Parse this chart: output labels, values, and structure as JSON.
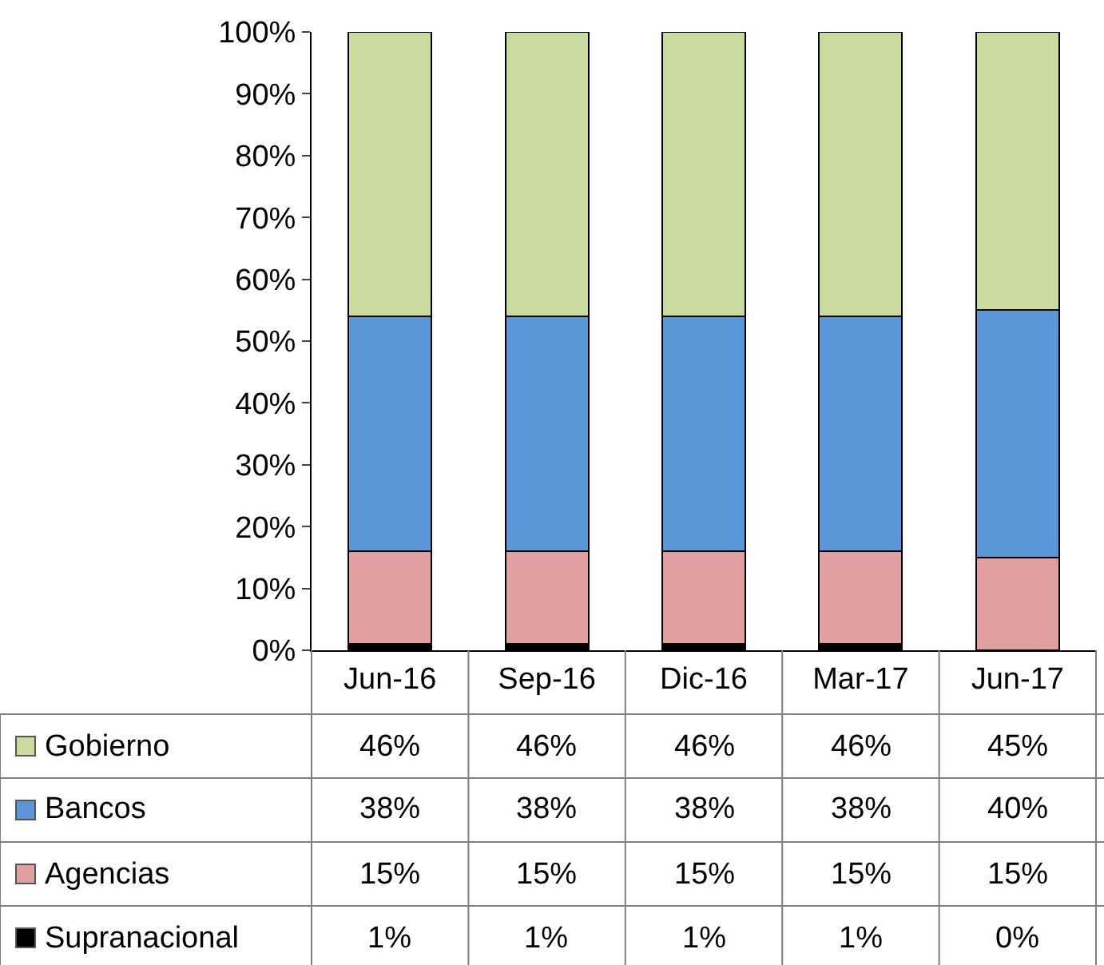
{
  "chart_data": {
    "type": "bar",
    "stacked": true,
    "categories": [
      "Jun-16",
      "Sep-16",
      "Dic-16",
      "Mar-17",
      "Jun-17"
    ],
    "series": [
      {
        "name": "Supranacional",
        "color": "#000000",
        "values": [
          1,
          1,
          1,
          1,
          0
        ],
        "value_labels": [
          "1%",
          "1%",
          "1%",
          "1%",
          "0%"
        ]
      },
      {
        "name": "Agencias",
        "color": "#e0a0a0",
        "values": [
          15,
          15,
          15,
          15,
          15
        ],
        "value_labels": [
          "15%",
          "15%",
          "15%",
          "15%",
          "15%"
        ]
      },
      {
        "name": "Bancos",
        "color": "#5b96d8",
        "values": [
          38,
          38,
          38,
          38,
          40
        ],
        "value_labels": [
          "38%",
          "38%",
          "38%",
          "38%",
          "40%"
        ]
      },
      {
        "name": "Gobierno",
        "color": "#c9da9f",
        "values": [
          46,
          46,
          46,
          46,
          45
        ],
        "value_labels": [
          "46%",
          "46%",
          "46%",
          "46%",
          "45%"
        ]
      }
    ],
    "ylim": [
      0,
      100
    ],
    "yticks": [
      {
        "value": 0,
        "label": "0%"
      },
      {
        "value": 10,
        "label": "10%"
      },
      {
        "value": 20,
        "label": "20%"
      },
      {
        "value": 30,
        "label": "30%"
      },
      {
        "value": 40,
        "label": "40%"
      },
      {
        "value": 50,
        "label": "50%"
      },
      {
        "value": 60,
        "label": "60%"
      },
      {
        "value": 70,
        "label": "70%"
      },
      {
        "value": 80,
        "label": "80%"
      },
      {
        "value": 90,
        "label": "90%"
      },
      {
        "value": 100,
        "label": "100%"
      }
    ],
    "legend": "bottom left"
  }
}
